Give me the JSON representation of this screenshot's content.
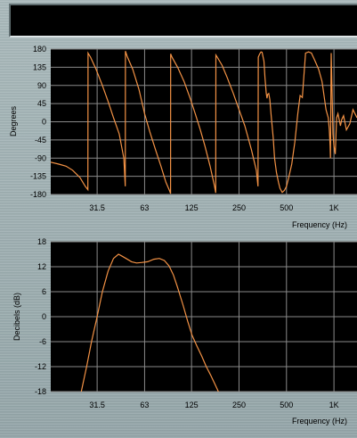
{
  "colors": {
    "trace": "#f39245",
    "plot_bg": "#000000",
    "grid": "#8a8a8a"
  },
  "chart_data": [
    {
      "type": "line",
      "title": "",
      "xlabel": "Frequency (Hz)",
      "ylabel": "Degrees",
      "x_scale": "log",
      "xlim": [
        16,
        1400
      ],
      "ylim": [
        -180,
        180
      ],
      "x_ticks": [
        31.5,
        63,
        125,
        250,
        500,
        1000
      ],
      "x_tick_labels": [
        "31.5",
        "63",
        "125",
        "250",
        "500",
        "1K"
      ],
      "y_ticks": [
        180,
        135,
        90,
        45,
        0,
        -45,
        -90,
        -135,
        -180
      ],
      "y_tick_labels": [
        "180",
        "135",
        "90",
        "45",
        "0",
        "-45",
        "-90",
        "-135",
        "-180"
      ],
      "grid": true,
      "series": [
        {
          "x": [
            16,
            18,
            20,
            22,
            24.5,
            26.5,
            27.5,
            27.6,
            28.6,
            31,
            34,
            37,
            40,
            43.5,
            46.5,
            47.5,
            47.6,
            48.8,
            53,
            58,
            63,
            68,
            74,
            80,
            86,
            91,
            92,
            92.2,
            94,
            102,
            112,
            122,
            132,
            142,
            152,
            164,
            175,
            178,
            178.3,
            182,
            195,
            210,
            230,
            250,
            272,
            300,
            322,
            330,
            331,
            338,
            345,
            350,
            360,
            365,
            372,
            376,
            380,
            386,
            392,
            400,
            412,
            420,
            432,
            445,
            455,
            470,
            485,
            500,
            515,
            540,
            565,
            590,
            610,
            630,
            660,
            690,
            720,
            760,
            800,
            840,
            890,
            920,
            935,
            945,
            950,
            960,
            985,
            1000,
            1020,
            1040,
            1060,
            1080,
            1100,
            1120,
            1150,
            1200,
            1260,
            1320,
            1400
          ],
          "y": [
            -100,
            -105,
            -110,
            -120,
            -138,
            -160,
            -168,
            170,
            160,
            130,
            90,
            50,
            10,
            -30,
            -90,
            -160,
            175,
            162,
            130,
            80,
            20,
            -25,
            -70,
            -110,
            -150,
            -172,
            -178,
            168,
            160,
            135,
            100,
            60,
            20,
            -20,
            -60,
            -110,
            -160,
            -176,
            165,
            160,
            140,
            110,
            70,
            30,
            -10,
            -70,
            -120,
            -160,
            160,
            168,
            173,
            172,
            150,
            110,
            72,
            58,
            68,
            70,
            55,
            15,
            -40,
            -90,
            -125,
            -150,
            -165,
            -175,
            -170,
            -160,
            -140,
            -105,
            -50,
            20,
            65,
            60,
            170,
            173,
            170,
            150,
            130,
            100,
            30,
            10,
            -20,
            -60,
            -90,
            170,
            -30,
            -60,
            -80,
            10,
            20,
            5,
            -10,
            5,
            15,
            -20,
            -5,
            30,
            10
          ]
        }
      ]
    },
    {
      "type": "line",
      "title": "",
      "xlabel": "Frequency (Hz)",
      "ylabel": "Decibels (dB)",
      "x_scale": "log",
      "xlim": [
        16,
        1400
      ],
      "ylim": [
        -18,
        18
      ],
      "x_ticks": [
        31.5,
        63,
        125,
        250,
        500,
        1000
      ],
      "x_tick_labels": [
        "31.5",
        "63",
        "125",
        "250",
        "500",
        "1K"
      ],
      "y_ticks": [
        18,
        12,
        6,
        0,
        -6,
        -12,
        -18
      ],
      "y_tick_labels": [
        "18",
        "12",
        "6",
        "0",
        "-6",
        "-12",
        "-18"
      ],
      "grid": true,
      "series": [
        {
          "x": [
            25,
            27,
            29,
            31.5,
            34,
            37,
            40,
            43,
            45.5,
            48,
            52,
            56,
            60,
            66,
            72,
            78,
            84,
            90,
            96,
            102,
            110,
            118,
            126,
            135,
            145,
            155,
            165,
            175,
            185
          ],
          "y": [
            -18,
            -12,
            -6,
            0,
            6,
            11,
            14,
            15,
            14.5,
            14,
            13.2,
            12.9,
            13,
            13.2,
            13.8,
            14,
            13.5,
            12.2,
            10,
            7,
            3,
            -1,
            -4.5,
            -7,
            -9.5,
            -12,
            -14,
            -16,
            -18
          ]
        }
      ]
    }
  ]
}
